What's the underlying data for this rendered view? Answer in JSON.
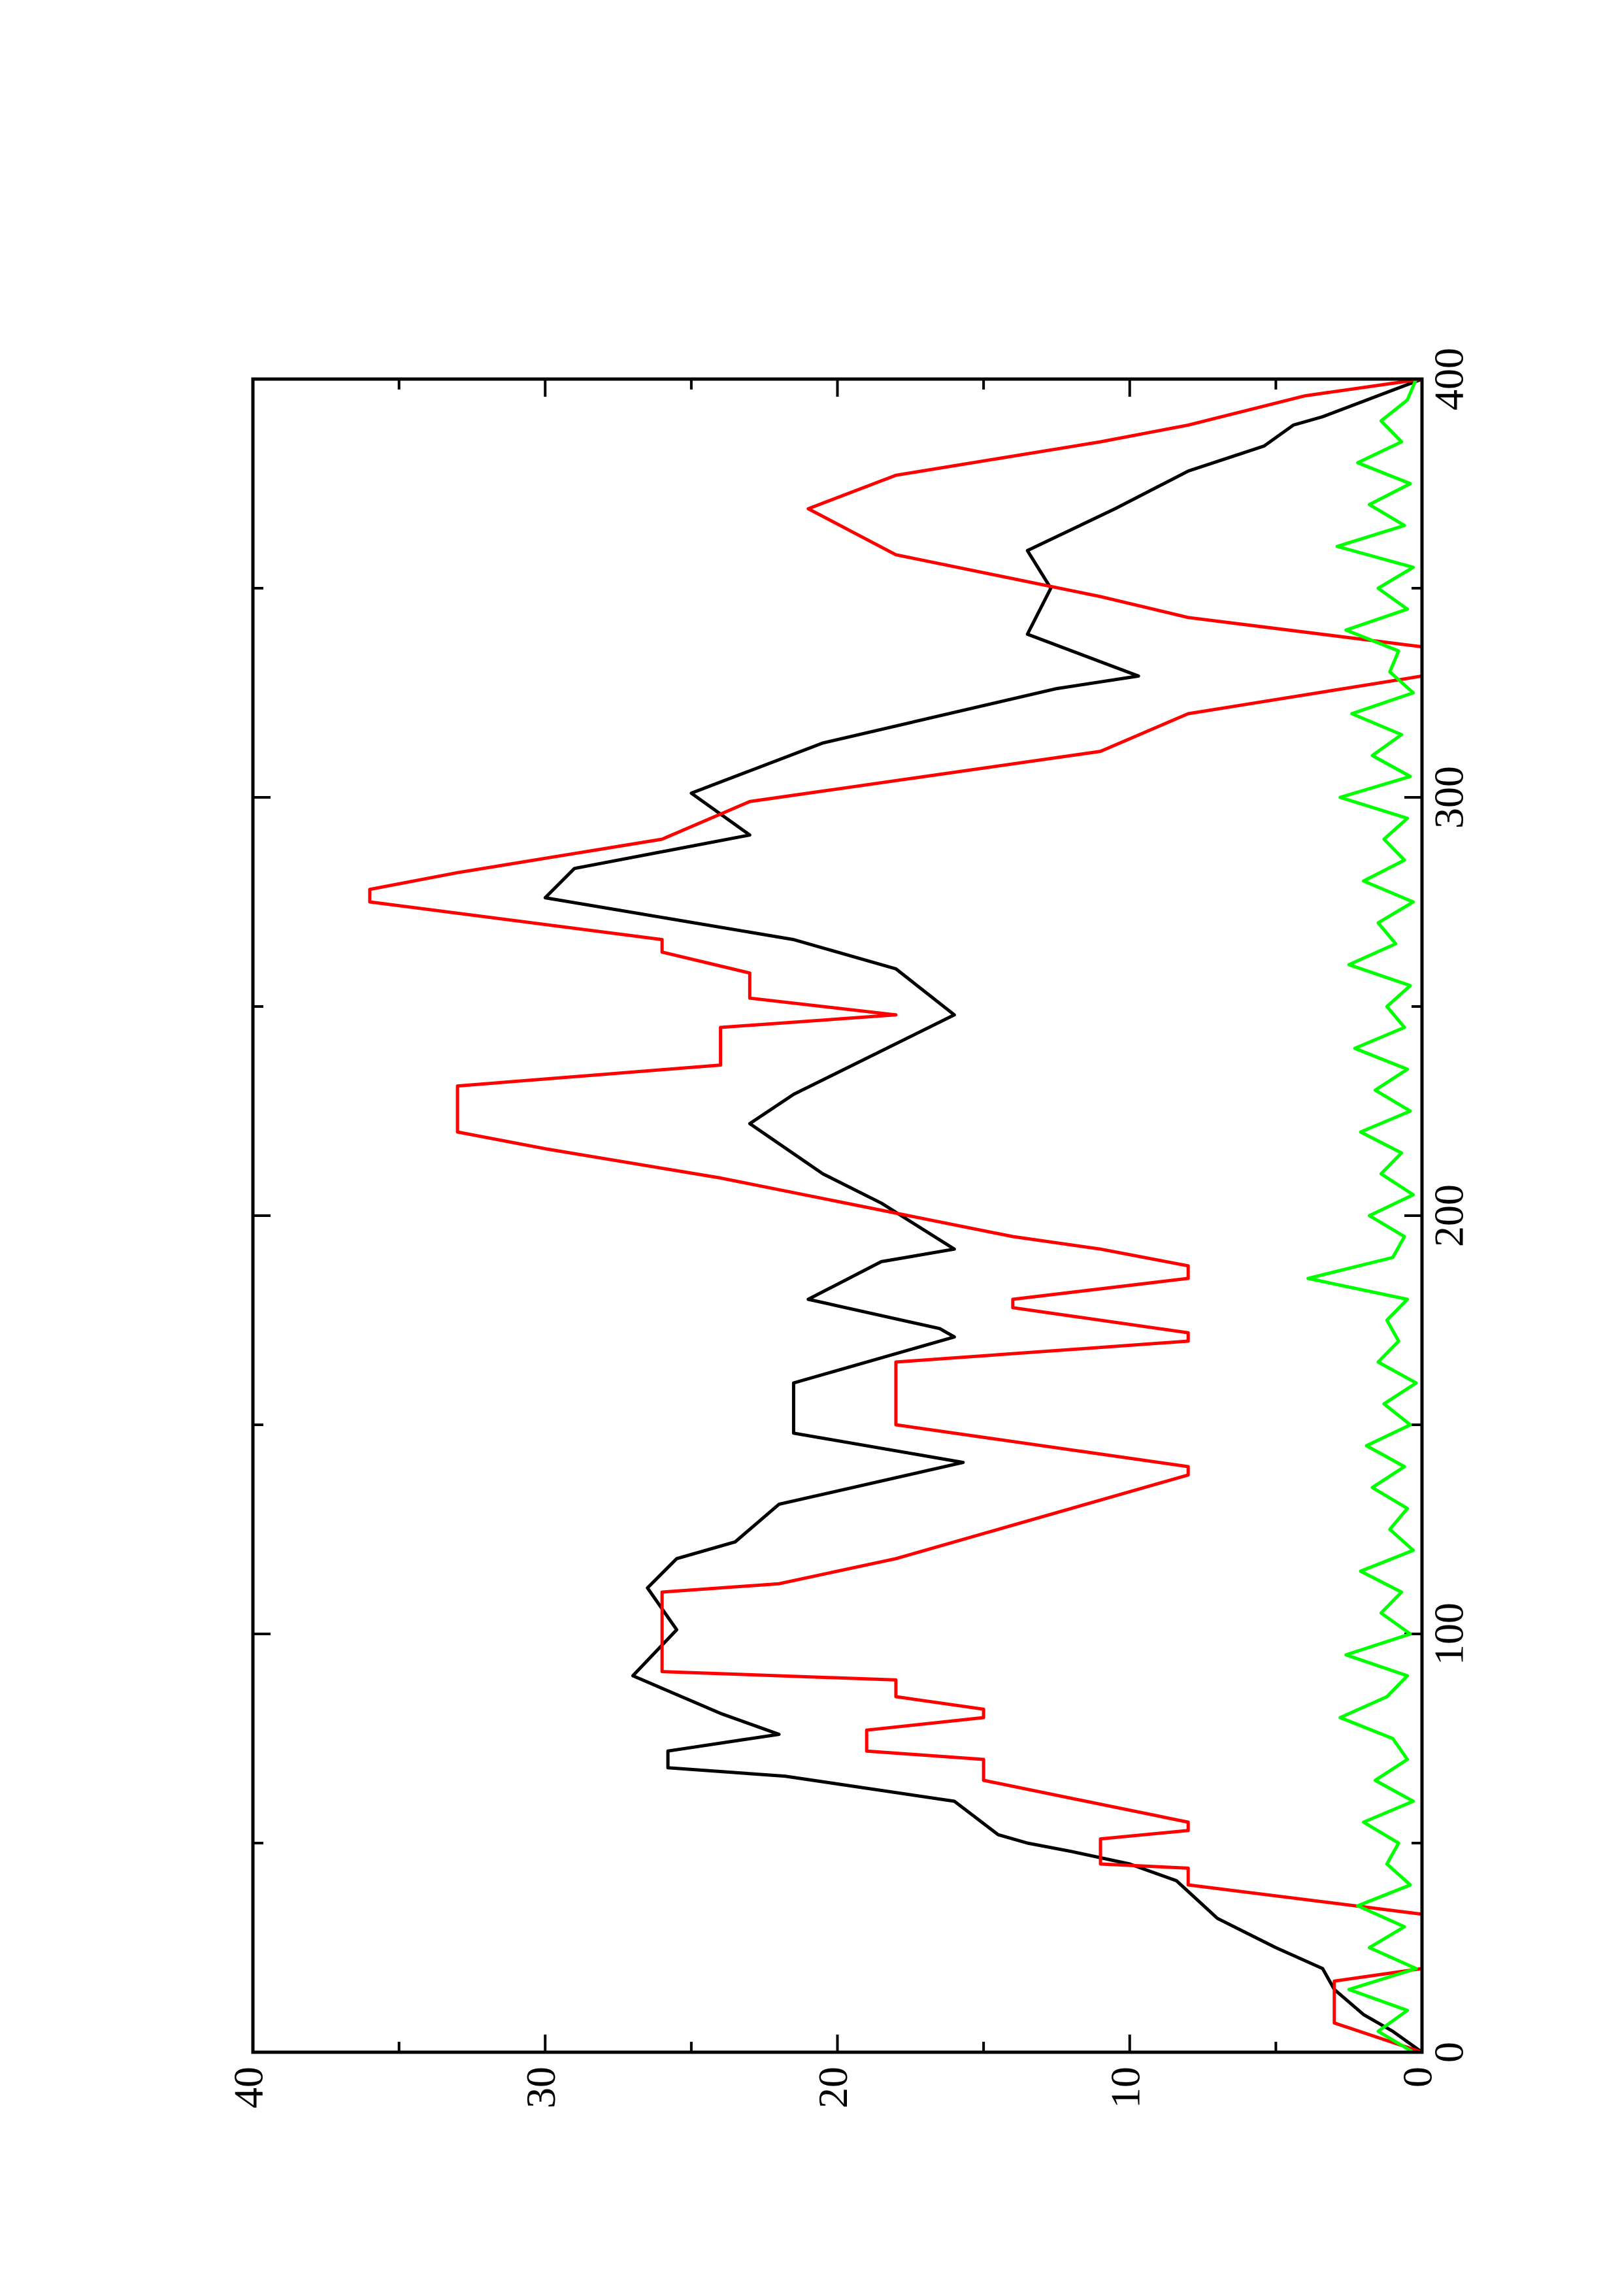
{
  "chart_data": {
    "type": "line",
    "xlim": [
      0,
      400
    ],
    "ylim": [
      0,
      40
    ],
    "xticks": [
      0,
      100,
      200,
      300,
      400
    ],
    "yticks": [
      0,
      10,
      20,
      30,
      40
    ],
    "xminorticks": [
      50,
      150,
      250,
      350
    ],
    "yminorticks": [
      5,
      15,
      25,
      35
    ],
    "rotated": true,
    "series": [
      {
        "color": "#000000",
        "x": [
          0,
          5,
          9,
          15,
          20,
          25,
          32,
          41,
          45,
          48,
          50,
          52,
          60,
          66,
          68,
          72,
          76,
          81,
          90,
          101,
          104,
          111,
          118,
          122,
          131,
          141,
          148,
          160,
          171,
          173,
          180,
          189,
          192,
          203,
          210,
          222,
          229,
          248,
          259,
          266,
          276,
          283,
          291,
          301,
          313,
          326,
          329,
          339,
          350,
          359,
          369,
          378,
          384,
          389,
          391,
          400
        ],
        "values": [
          0,
          1,
          2,
          3,
          3.4,
          5,
          7,
          8.4,
          10,
          12,
          13.5,
          14.5,
          16,
          21.8,
          25.8,
          25.8,
          22,
          24,
          27,
          25.5,
          25.8,
          26.5,
          25.5,
          23.5,
          22,
          15.7,
          21.5,
          21.5,
          16,
          16.5,
          21,
          18.5,
          16,
          18.5,
          20.5,
          23,
          21.5,
          16,
          18,
          21.5,
          30,
          29,
          23,
          25,
          20.5,
          12.5,
          9.7,
          13.5,
          12.7,
          13.5,
          10.5,
          8,
          5.4,
          4.4,
          3.4,
          0
        ]
      },
      {
        "color": "#ff0000",
        "x": [
          0,
          7,
          17,
          20,
          33,
          40,
          44,
          45,
          51,
          53,
          55,
          65,
          70,
          72,
          77,
          80,
          82,
          85,
          89,
          91,
          110,
          112,
          118,
          124,
          138,
          140,
          150,
          165,
          170,
          172,
          178,
          180,
          185,
          188,
          192,
          195,
          209,
          216,
          220,
          231,
          236,
          245,
          248,
          252,
          258,
          263,
          266,
          275,
          278,
          282,
          290,
          299,
          308,
          311,
          320,
          329,
          336,
          343,
          348,
          358,
          369,
          377,
          385,
          389,
          396,
          400
        ],
        "values": [
          0,
          3,
          3,
          0,
          0,
          8,
          8,
          11,
          11,
          8,
          8,
          15,
          15,
          19,
          19,
          15,
          15,
          18,
          18,
          26,
          26,
          22,
          18,
          15,
          8,
          8,
          18,
          18,
          8,
          8,
          14,
          14,
          8,
          8,
          11,
          14,
          24,
          30,
          33,
          33,
          24,
          24,
          18,
          23,
          23,
          26,
          26,
          36,
          36,
          33,
          26,
          23,
          14,
          11,
          8,
          0,
          0,
          8,
          11,
          18,
          21,
          18,
          11,
          8,
          4,
          0
        ]
      },
      {
        "color": "#00ff00",
        "x": [
          0,
          5,
          10,
          15,
          20,
          25,
          30,
          35,
          40,
          45,
          50,
          55,
          60,
          65,
          70,
          75,
          80,
          85,
          90,
          95,
          100,
          105,
          110,
          115,
          120,
          125,
          130,
          135,
          140,
          145,
          150,
          155,
          160,
          165,
          170,
          175,
          180,
          185,
          190,
          195,
          200,
          205,
          210,
          215,
          220,
          225,
          230,
          235,
          240,
          245,
          250,
          255,
          260,
          265,
          270,
          275,
          280,
          285,
          290,
          295,
          300,
          305,
          310,
          315,
          320,
          325,
          330,
          335,
          340,
          345,
          350,
          355,
          360,
          365,
          370,
          375,
          380,
          385,
          390,
          395,
          400
        ],
        "values": [
          0.3,
          1.5,
          0.5,
          2.5,
          0.2,
          1.8,
          0.6,
          2.2,
          0.4,
          1.2,
          0.8,
          2.0,
          0.3,
          1.6,
          0.5,
          1.0,
          2.8,
          1.2,
          0.5,
          2.6,
          0.4,
          1.4,
          0.7,
          2.1,
          0.3,
          1.1,
          0.5,
          1.7,
          0.6,
          1.9,
          0.4,
          1.3,
          0.2,
          1.5,
          0.8,
          1.2,
          0.5,
          3.9,
          1.0,
          0.6,
          1.8,
          0.3,
          1.4,
          0.7,
          2.1,
          0.4,
          1.6,
          0.5,
          2.3,
          0.6,
          1.2,
          0.4,
          2.5,
          0.9,
          1.5,
          0.3,
          2.0,
          0.6,
          1.3,
          0.5,
          2.8,
          0.4,
          1.7,
          0.7,
          2.4,
          0.3,
          1.1,
          0.8,
          2.6,
          0.5,
          1.5,
          0.3,
          2.9,
          0.6,
          1.8,
          0.4,
          2.2,
          0.7,
          1.4,
          0.5,
          0.2
        ]
      }
    ]
  }
}
